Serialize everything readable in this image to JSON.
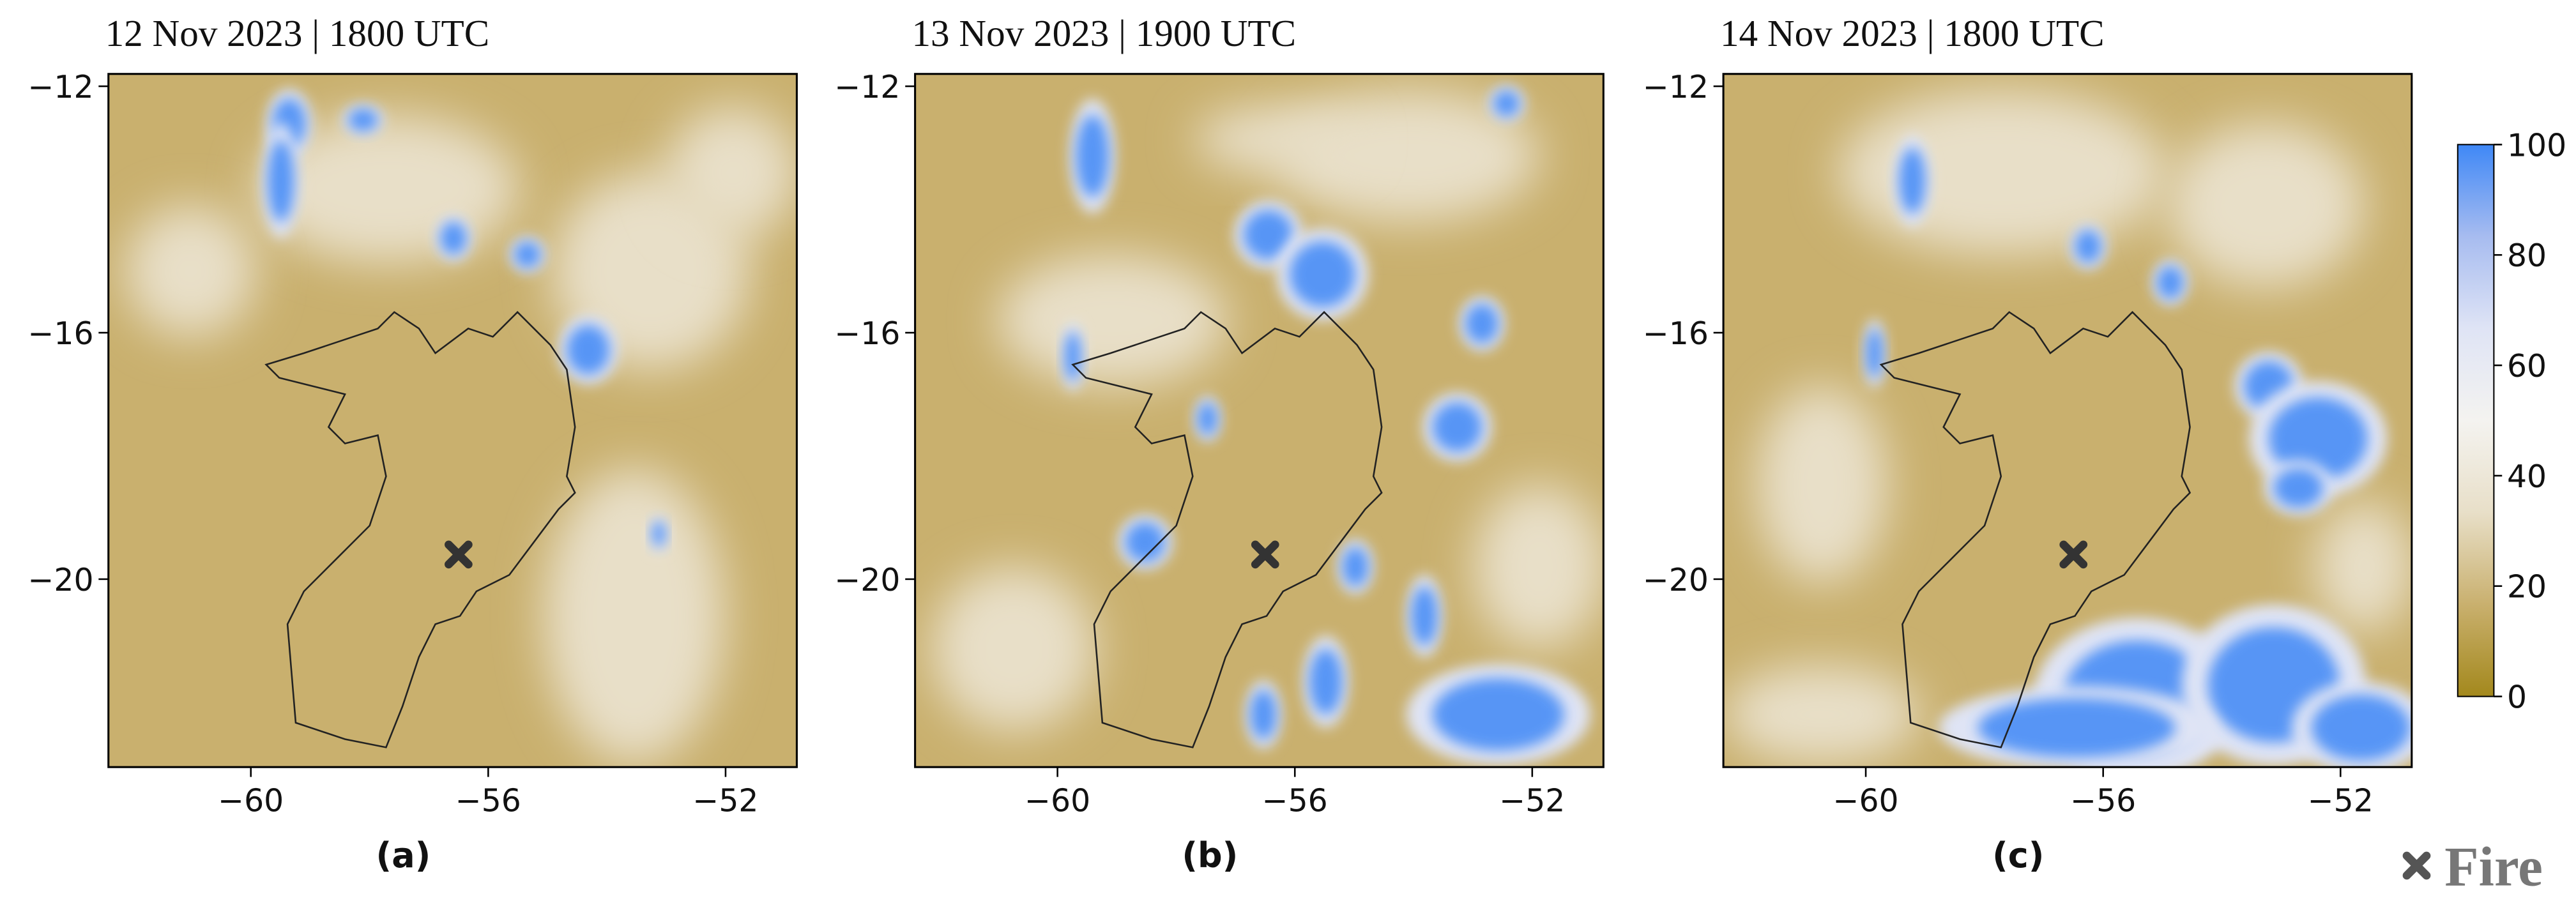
{
  "figure": {
    "panels": [
      {
        "title": "12 Nov 2023 | 1800 UTC",
        "label": "(a)",
        "xlim": [
          -62.4,
          -50.8
        ],
        "ylim": [
          -23.05,
          -11.8
        ],
        "xticks": [
          {
            "value": -60,
            "label": "−60"
          },
          {
            "value": -56,
            "label": "−56"
          },
          {
            "value": -52,
            "label": "−52"
          }
        ],
        "yticks": [
          {
            "value": -12,
            "label": "−12"
          },
          {
            "value": -16,
            "label": "−16"
          },
          {
            "value": -20,
            "label": "−20"
          }
        ],
        "fire": {
          "lon": -56.5,
          "lat": -19.6
        }
      },
      {
        "title": "13 Nov 2023 | 1900 UTC",
        "label": "(b)",
        "xlim": [
          -62.4,
          -50.8
        ],
        "ylim": [
          -23.05,
          -11.8
        ],
        "xticks": [
          {
            "value": -60,
            "label": "−60"
          },
          {
            "value": -56,
            "label": "−56"
          },
          {
            "value": -52,
            "label": "−52"
          }
        ],
        "yticks": [
          {
            "value": -12,
            "label": "−12"
          },
          {
            "value": -16,
            "label": "−16"
          },
          {
            "value": -20,
            "label": "−20"
          }
        ],
        "fire": {
          "lon": -56.5,
          "lat": -19.6
        }
      },
      {
        "title": "14 Nov 2023 | 1800 UTC",
        "label": "(c)",
        "xlim": [
          -62.4,
          -50.8
        ],
        "ylim": [
          -23.05,
          -11.8
        ],
        "xticks": [
          {
            "value": -60,
            "label": "−60"
          },
          {
            "value": -56,
            "label": "−56"
          },
          {
            "value": -52,
            "label": "−52"
          }
        ],
        "yticks": [
          {
            "value": -12,
            "label": "−12"
          },
          {
            "value": -16,
            "label": "−16"
          },
          {
            "value": -20,
            "label": "−20"
          }
        ],
        "fire": {
          "lon": -56.5,
          "lat": -19.6
        }
      }
    ],
    "colorbar": {
      "lim": [
        0,
        100
      ],
      "ticks": [
        0,
        20,
        40,
        60,
        80,
        100
      ],
      "colors": [
        "#a3881c",
        "#c9b06e",
        "#e8dfc8",
        "#f4f3f0",
        "#dfe4f5",
        "#a7bcf0",
        "#3f88f6"
      ]
    },
    "legend": {
      "label": "Fire"
    }
  }
}
